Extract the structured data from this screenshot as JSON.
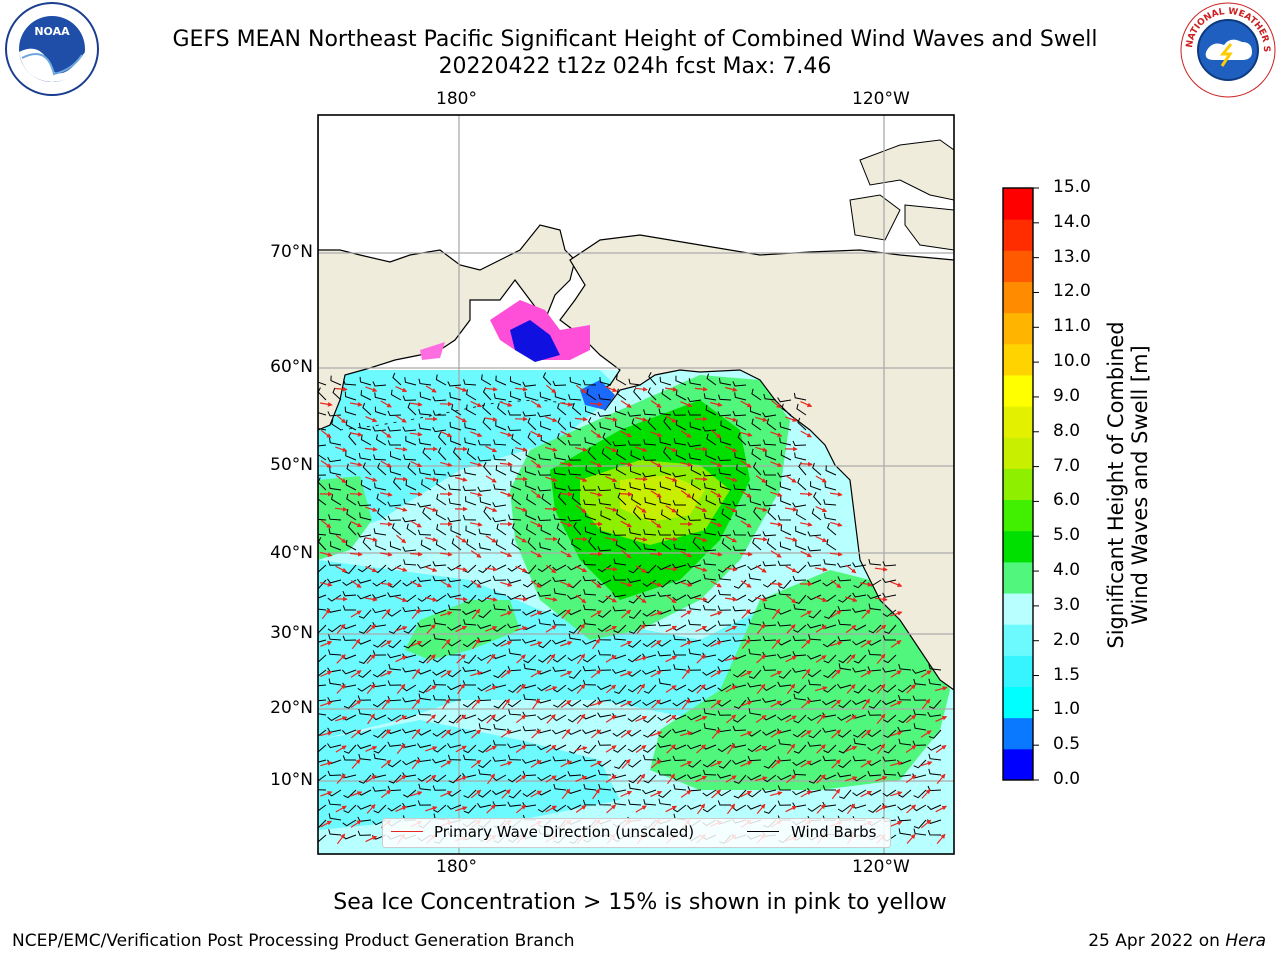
{
  "header": {
    "title_line1": "GEFS MEAN Northeast Pacific Significant Height of Combined Wind Waves and Swell",
    "title_line2": "20220422 t12z 024h fcst   Max: 7.46"
  },
  "logos": {
    "left": {
      "icon": "noaa-logo-icon",
      "text": "NOAA"
    },
    "right": {
      "icon": "nws-logo-icon",
      "text": "NATIONAL WEATHER SERVICE"
    }
  },
  "map": {
    "lon_labels": [
      "180°",
      "120°W"
    ],
    "lat_labels": [
      "70°N",
      "60°N",
      "50°N",
      "40°N",
      "30°N",
      "20°N",
      "10°N"
    ],
    "legend": {
      "wave_label": "Primary Wave Direction (unscaled)",
      "wind_label": "Wind Barbs",
      "wave_color": "#e8281f",
      "wind_color": "#000000"
    },
    "land_color": "#efecdc"
  },
  "colorbar": {
    "label": "Significant Height of Combined Wind Waves and Swell [m]",
    "ticks": [
      "15.0",
      "14.0",
      "13.0",
      "12.0",
      "11.0",
      "10.0",
      "9.0",
      "8.0",
      "7.0",
      "6.0",
      "5.0",
      "4.0",
      "3.0",
      "2.0",
      "1.5",
      "1.0",
      "0.5",
      "0.0"
    ],
    "colors": [
      "#0000ff",
      "#0a78ff",
      "#00ffff",
      "#36f5ff",
      "#6dfaff",
      "#b8ffff",
      "#50f77c",
      "#00e000",
      "#40f000",
      "#8ef000",
      "#c8ee00",
      "#e3f000",
      "#ffff00",
      "#ffd300",
      "#ffb400",
      "#ff8c00",
      "#ff5a00",
      "#ff2d00",
      "#ff0000"
    ]
  },
  "footer": {
    "caption": "Sea Ice Concentration > 15% is shown in pink to yellow",
    "left": "NCEP/EMC/Verification Post Processing Product Generation Branch",
    "date": "25 Apr 2022 on ",
    "machine": "Hera"
  }
}
